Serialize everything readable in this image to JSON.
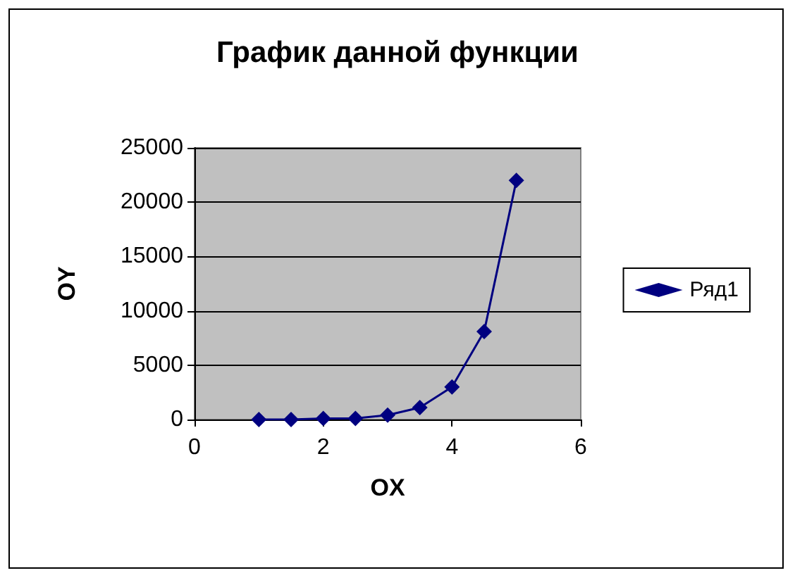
{
  "chart_data": {
    "type": "line",
    "title": "График данной функции",
    "xlabel": "OX",
    "ylabel": "OY",
    "x": [
      1,
      1.5,
      2,
      2.5,
      3,
      3.5,
      4,
      4.5,
      5
    ],
    "series": [
      {
        "name": "Ряд1",
        "color": "#000080",
        "values": [
          0,
          0,
          100,
          100,
          400,
          1100,
          3000,
          8100,
          22000
        ]
      }
    ],
    "xlim": [
      0,
      6
    ],
    "xticks": [
      0,
      2,
      4,
      6
    ],
    "ylim": [
      0,
      25000
    ],
    "yticks": [
      0,
      5000,
      10000,
      15000,
      20000,
      25000
    ],
    "grid": "y",
    "legend": "right",
    "marker": "diamond",
    "line_style": "solid"
  }
}
